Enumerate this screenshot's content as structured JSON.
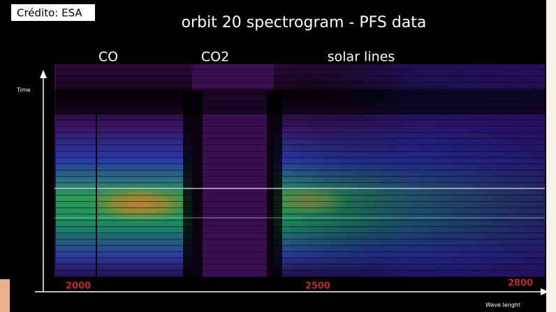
{
  "credit": "Crédito: ESA",
  "title": "orbit 20 spectrogram - PFS data",
  "annotations": [
    "CO",
    "CO2",
    "solar lines"
  ],
  "axes": {
    "y_label": "Time",
    "x_label": "Wave lenght",
    "x_tick_labels": [
      "2000",
      "2500",
      "2800"
    ]
  }
}
